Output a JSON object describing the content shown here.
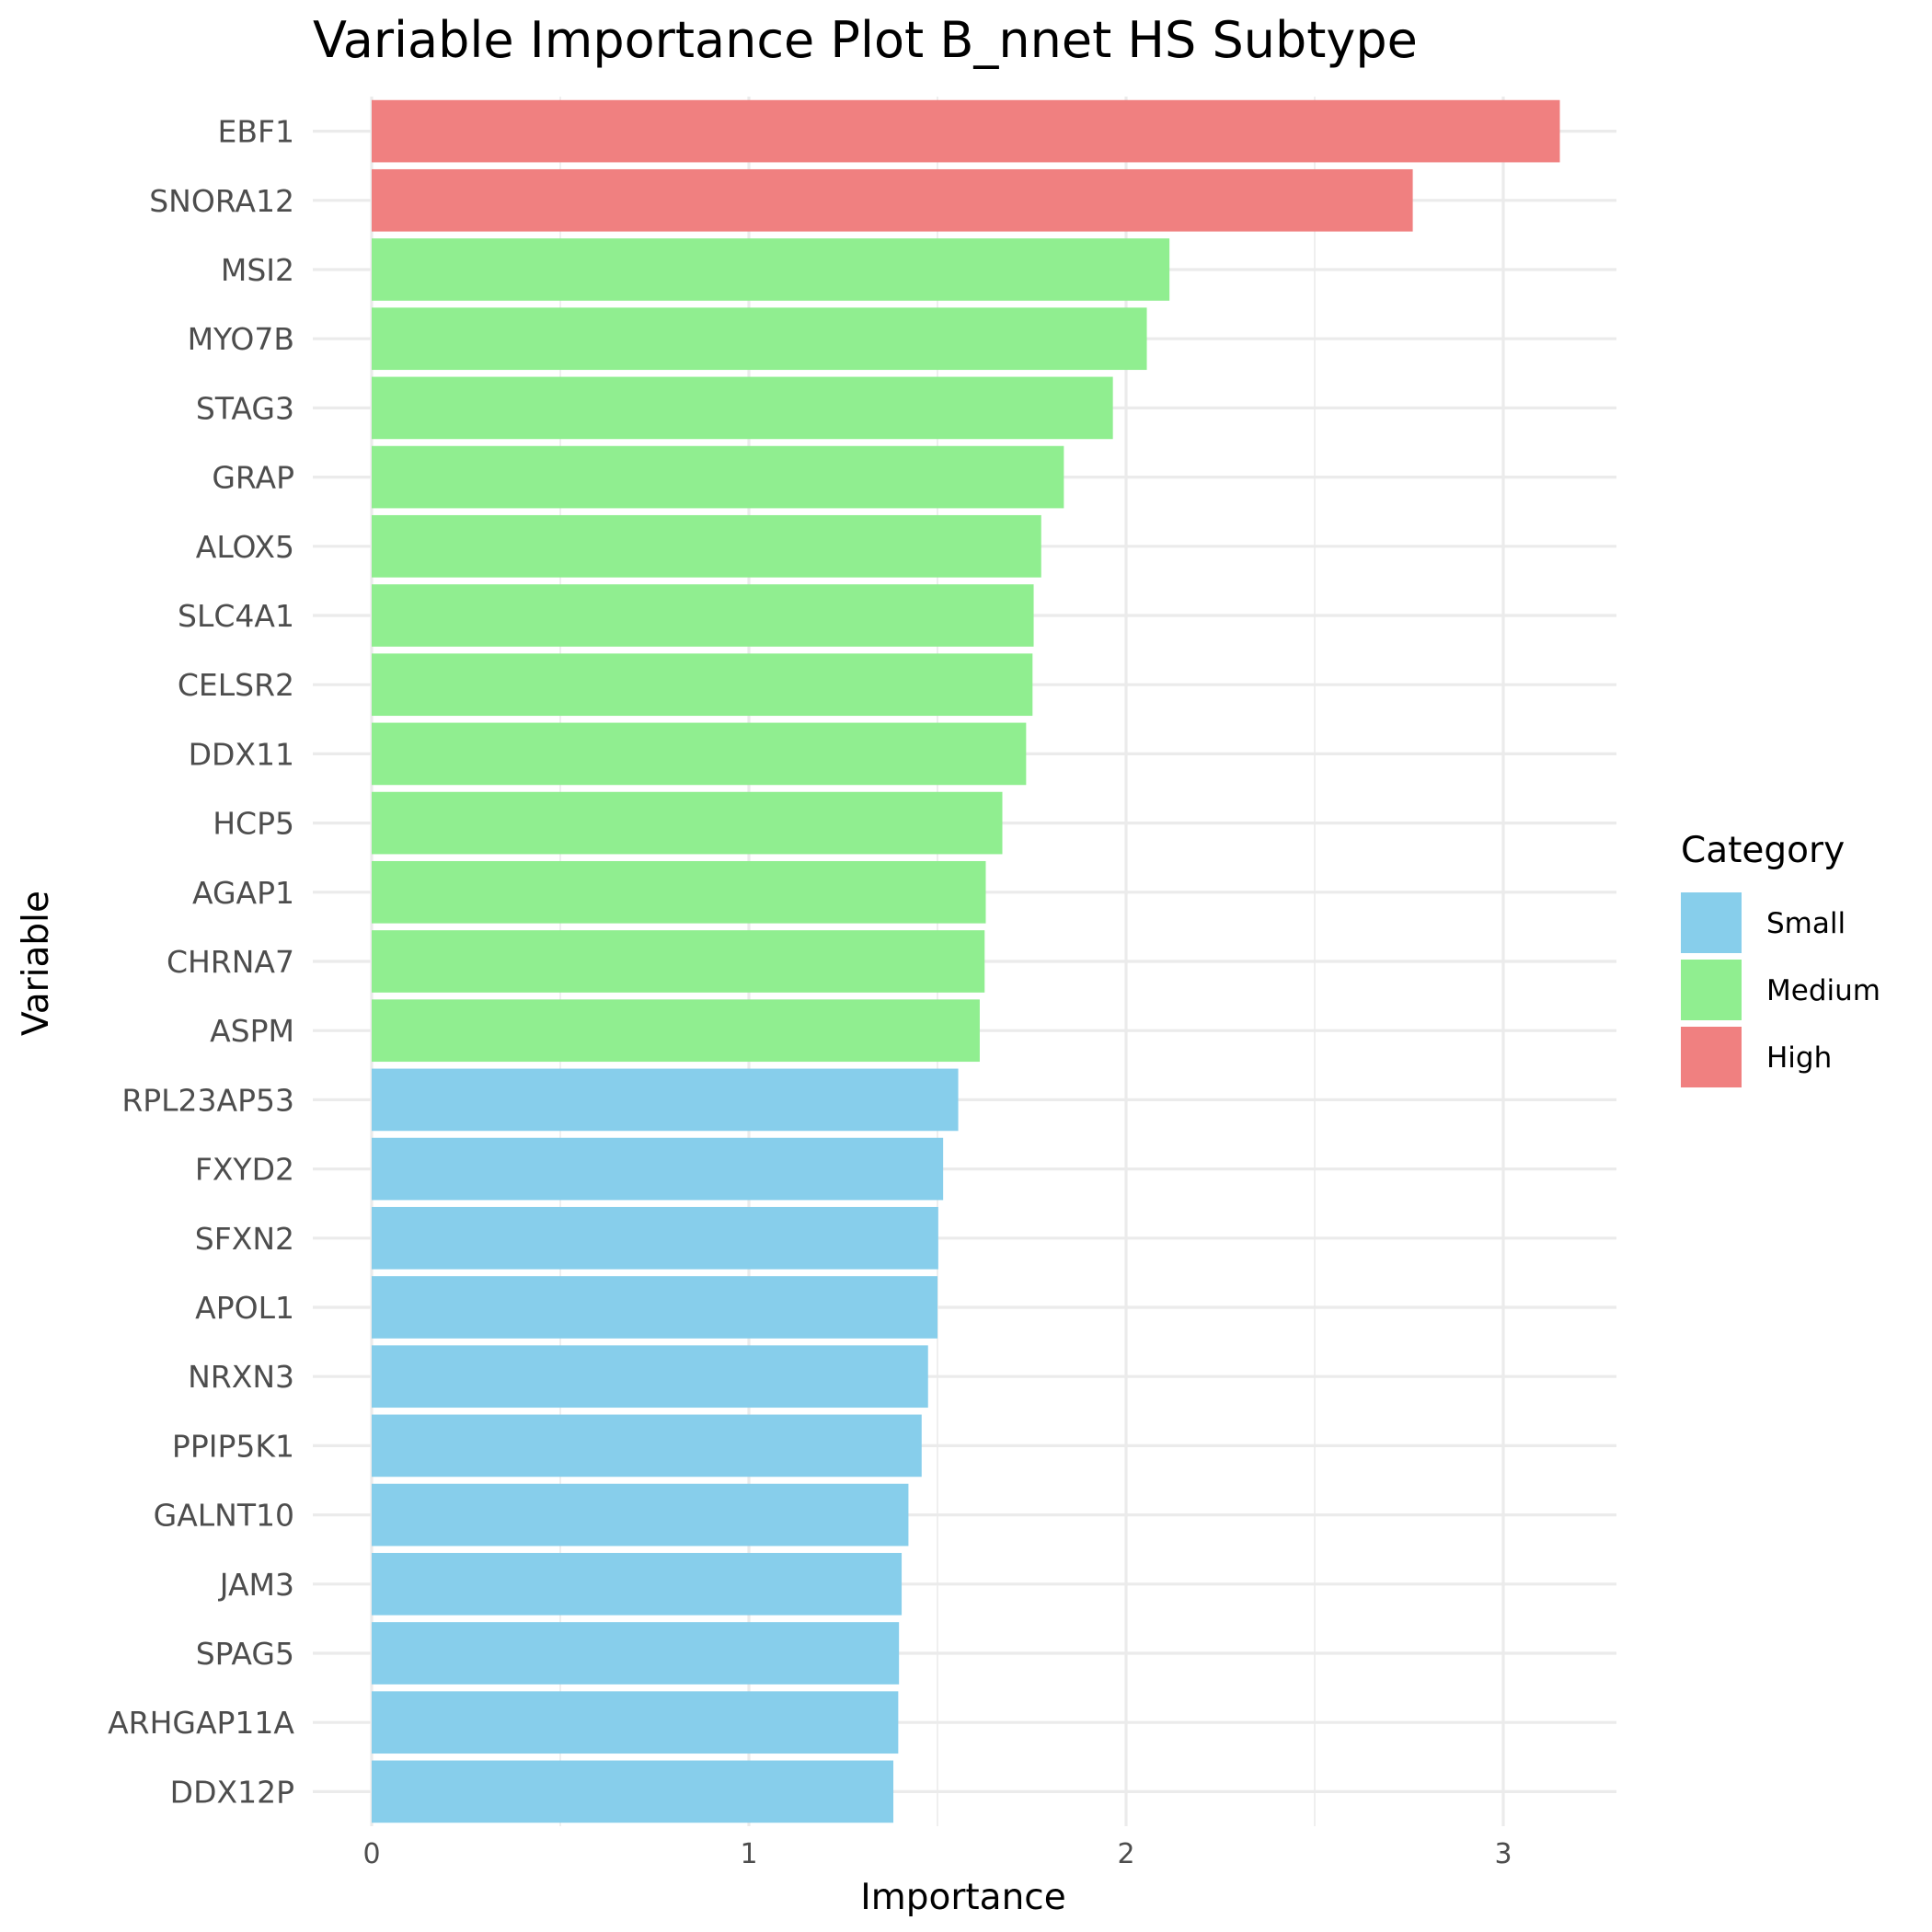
{
  "chart_data": {
    "type": "bar",
    "orientation": "horizontal",
    "title": "Variable Importance Plot B_nnet HS Subtype",
    "xlabel": "Importance",
    "ylabel": "Variable",
    "xlim": [
      0,
      3.3
    ],
    "x_ticks": [
      0,
      1,
      2,
      3
    ],
    "grid": true,
    "legend": {
      "title": "Category",
      "position": "right",
      "entries": [
        {
          "label": "Small",
          "color": "#87CEEB"
        },
        {
          "label": "Medium",
          "color": "#90EE90"
        },
        {
          "label": "High",
          "color": "#F08080"
        }
      ]
    },
    "bars": [
      {
        "variable": "EBF1",
        "value": 3.15,
        "category": "High"
      },
      {
        "variable": "SNORA12",
        "value": 2.76,
        "category": "High"
      },
      {
        "variable": "MSI2",
        "value": 2.115,
        "category": "Medium"
      },
      {
        "variable": "MYO7B",
        "value": 2.055,
        "category": "Medium"
      },
      {
        "variable": "STAG3",
        "value": 1.965,
        "category": "Medium"
      },
      {
        "variable": "GRAP",
        "value": 1.835,
        "category": "Medium"
      },
      {
        "variable": "ALOX5",
        "value": 1.775,
        "category": "Medium"
      },
      {
        "variable": "SLC4A1",
        "value": 1.755,
        "category": "Medium"
      },
      {
        "variable": "CELSR2",
        "value": 1.752,
        "category": "Medium"
      },
      {
        "variable": "DDX11",
        "value": 1.735,
        "category": "Medium"
      },
      {
        "variable": "HCP5",
        "value": 1.672,
        "category": "Medium"
      },
      {
        "variable": "AGAP1",
        "value": 1.628,
        "category": "Medium"
      },
      {
        "variable": "CHRNA7",
        "value": 1.625,
        "category": "Medium"
      },
      {
        "variable": "ASPM",
        "value": 1.612,
        "category": "Medium"
      },
      {
        "variable": "RPL23AP53",
        "value": 1.555,
        "category": "Small"
      },
      {
        "variable": "FXYD2",
        "value": 1.515,
        "category": "Small"
      },
      {
        "variable": "SFXN2",
        "value": 1.502,
        "category": "Small"
      },
      {
        "variable": "APOL1",
        "value": 1.5,
        "category": "Small"
      },
      {
        "variable": "NRXN3",
        "value": 1.475,
        "category": "Small"
      },
      {
        "variable": "PPIP5K1",
        "value": 1.458,
        "category": "Small"
      },
      {
        "variable": "GALNT10",
        "value": 1.423,
        "category": "Small"
      },
      {
        "variable": "JAM3",
        "value": 1.405,
        "category": "Small"
      },
      {
        "variable": "SPAG5",
        "value": 1.398,
        "category": "Small"
      },
      {
        "variable": "ARHGAP11A",
        "value": 1.396,
        "category": "Small"
      },
      {
        "variable": "DDX12P",
        "value": 1.383,
        "category": "Small"
      }
    ]
  }
}
